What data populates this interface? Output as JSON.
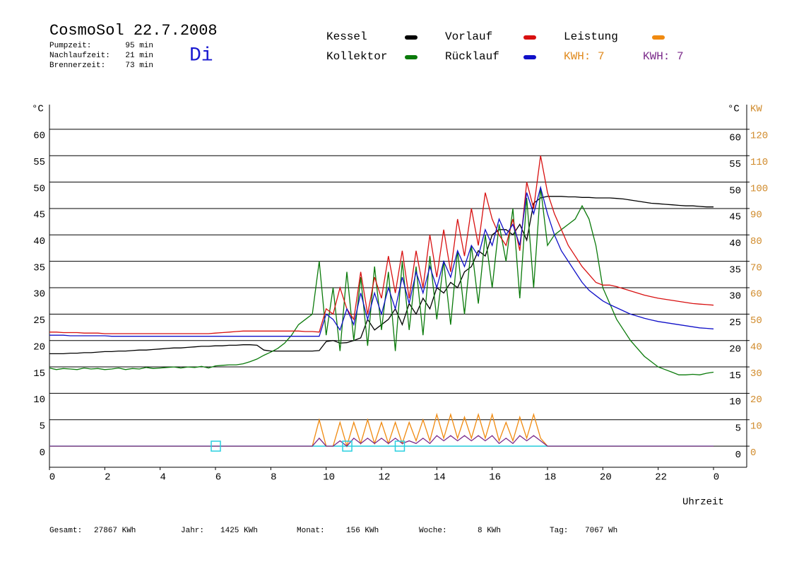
{
  "chart_data": {
    "type": "line",
    "title": "CosmoSol 22.7.2008",
    "day": "Di",
    "stats": [
      [
        "Pumpzeit:",
        "95 min"
      ],
      [
        "Nachlaufzeit:",
        "21 min"
      ],
      [
        "Brennerzeit:",
        "73 min"
      ]
    ],
    "kwh_labels": [
      {
        "text": "KWH: 7",
        "color": "#e08a1e"
      },
      {
        "text": "KWH: 7",
        "color": "#7a2a8a"
      }
    ],
    "footer": [
      [
        "Gesamt:",
        "27867 KWh"
      ],
      [
        "Jahr:",
        "1425 KWh"
      ],
      [
        "Monat:",
        "156 KWh"
      ],
      [
        "Woche:",
        "8 KWh"
      ],
      [
        "Tag:",
        "7067 Wh"
      ]
    ],
    "y_unit": "°C",
    "y2_unit": "KW",
    "xlabel": "Uhrzeit",
    "xlim": [
      0,
      25.2
    ],
    "xticks": [
      0,
      2,
      4,
      6,
      8,
      10,
      12,
      14,
      16,
      18,
      20,
      22,
      {
        "value": 24,
        "label": "0"
      }
    ],
    "ylim": [
      -4,
      64
    ],
    "yticks": [
      0,
      5,
      10,
      15,
      20,
      25,
      30,
      35,
      40,
      45,
      50,
      55,
      60
    ],
    "y2lim": [
      -8,
      128
    ],
    "y2ticks": [
      0,
      10,
      20,
      30,
      40,
      50,
      60,
      70,
      80,
      90,
      100,
      110,
      120
    ],
    "grid": true,
    "events_x": [
      6,
      10.75,
      12.65
    ],
    "x": [
      0,
      0.25,
      0.5,
      0.75,
      1,
      1.25,
      1.5,
      1.75,
      2,
      2.25,
      2.5,
      2.75,
      3,
      3.25,
      3.5,
      3.75,
      4,
      4.25,
      4.5,
      4.75,
      5,
      5.25,
      5.5,
      5.75,
      6,
      6.25,
      6.5,
      6.75,
      7,
      7.25,
      7.5,
      7.75,
      8,
      8.25,
      8.5,
      8.75,
      9,
      9.25,
      9.5,
      9.75,
      10,
      10.25,
      10.5,
      10.75,
      11,
      11.25,
      11.5,
      11.75,
      12,
      12.25,
      12.5,
      12.75,
      13,
      13.25,
      13.5,
      13.75,
      14,
      14.25,
      14.5,
      14.75,
      15,
      15.25,
      15.5,
      15.75,
      16,
      16.25,
      16.5,
      16.75,
      17,
      17.25,
      17.5,
      17.75,
      18,
      18.25,
      18.5,
      18.75,
      19,
      19.25,
      19.5,
      19.75,
      20,
      20.25,
      20.5,
      20.75,
      21,
      21.25,
      21.5,
      21.75,
      22,
      22.25,
      22.5,
      22.75,
      23,
      23.25,
      23.5,
      23.75,
      24
    ],
    "series": [
      {
        "name": "Kessel",
        "color": "#000000",
        "values": [
          17.5,
          17.5,
          17.5,
          17.6,
          17.6,
          17.7,
          17.7,
          17.8,
          17.9,
          17.9,
          18,
          18,
          18.1,
          18.2,
          18.2,
          18.3,
          18.4,
          18.5,
          18.6,
          18.6,
          18.7,
          18.8,
          18.9,
          18.9,
          19,
          19,
          19.1,
          19.1,
          19.2,
          19.2,
          19.1,
          18.2,
          18,
          18,
          18,
          18,
          18,
          18,
          18,
          18.1,
          19.8,
          20,
          19.5,
          19.6,
          20,
          20.5,
          24,
          22,
          23,
          24,
          26,
          23,
          27,
          25,
          28,
          26,
          30,
          29,
          31,
          30,
          33,
          34,
          37,
          36,
          40,
          41,
          41,
          40,
          42,
          39,
          46,
          47,
          47.3,
          47.3,
          47.3,
          47.2,
          47.2,
          47.1,
          47.1,
          47,
          47,
          47,
          46.9,
          46.8,
          46.6,
          46.4,
          46.2,
          46,
          45.9,
          45.8,
          45.7,
          45.6,
          45.5,
          45.5,
          45.4,
          45.3,
          45.3
        ]
      },
      {
        "name": "Kollektor",
        "color": "#0a7a0a",
        "values": [
          14.8,
          14.5,
          14.7,
          14.6,
          14.5,
          14.8,
          14.6,
          14.7,
          14.5,
          14.6,
          14.8,
          14.5,
          14.7,
          14.6,
          14.9,
          14.7,
          14.8,
          14.9,
          15,
          14.8,
          15,
          14.9,
          15.1,
          14.8,
          15.2,
          15.3,
          15.4,
          15.4,
          15.6,
          16,
          16.5,
          17.2,
          17.8,
          18.5,
          19.5,
          21,
          23,
          24,
          25,
          35,
          21,
          30,
          18,
          33,
          20,
          32,
          19,
          34,
          22,
          33,
          18,
          35,
          22,
          34,
          21,
          36,
          24,
          35,
          23,
          37,
          25,
          38,
          27,
          40,
          30,
          42,
          35,
          45,
          28,
          47,
          30,
          49,
          38,
          40,
          41,
          42,
          43,
          45.5,
          43,
          38,
          30,
          27,
          24,
          22,
          20,
          18.5,
          17,
          16,
          15,
          14.5,
          14,
          13.5,
          13.5,
          13.6,
          13.5,
          13.8,
          14
        ]
      },
      {
        "name": "Vorlauf",
        "color": "#d81010",
        "values": [
          21.6,
          21.6,
          21.5,
          21.5,
          21.5,
          21.4,
          21.4,
          21.4,
          21.3,
          21.3,
          21.3,
          21.3,
          21.3,
          21.3,
          21.3,
          21.3,
          21.3,
          21.3,
          21.3,
          21.3,
          21.3,
          21.3,
          21.3,
          21.3,
          21.4,
          21.5,
          21.6,
          21.7,
          21.8,
          21.8,
          21.8,
          21.8,
          21.8,
          21.8,
          21.8,
          21.8,
          21.8,
          21.7,
          21.7,
          21.6,
          26,
          25,
          30,
          26,
          24,
          33,
          25,
          32,
          28,
          36,
          29,
          37,
          28,
          37,
          30,
          40,
          32,
          41,
          33,
          43,
          36,
          45,
          38,
          48,
          43,
          40,
          38,
          43,
          37,
          50,
          45,
          55,
          48,
          44,
          41,
          38,
          36,
          34,
          32.5,
          31,
          30.5,
          30.5,
          30.2,
          29.8,
          29.4,
          29,
          28.6,
          28.3,
          28,
          27.8,
          27.6,
          27.4,
          27.2,
          27,
          26.9,
          26.8,
          26.7
        ]
      },
      {
        "name": "Rücklauf",
        "color": "#1010c8",
        "values": [
          21,
          21,
          21,
          20.9,
          20.9,
          20.9,
          20.9,
          20.9,
          20.9,
          20.8,
          20.8,
          20.8,
          20.8,
          20.8,
          20.8,
          20.8,
          20.8,
          20.8,
          20.8,
          20.8,
          20.8,
          20.8,
          20.8,
          20.8,
          20.8,
          20.8,
          20.8,
          20.8,
          20.8,
          20.8,
          20.8,
          20.8,
          20.8,
          20.8,
          20.8,
          20.8,
          20.8,
          20.8,
          20.8,
          20.8,
          25,
          24,
          22,
          26,
          23,
          29,
          24,
          29,
          25,
          30,
          26,
          32,
          27,
          33,
          29,
          34,
          30,
          35,
          32,
          37,
          34,
          38,
          36,
          41,
          38,
          43,
          40,
          42,
          38,
          48,
          44,
          49,
          44,
          40,
          37,
          35,
          33,
          31,
          29.5,
          28.5,
          27.5,
          26.8,
          26.2,
          25.6,
          25,
          24.6,
          24.2,
          23.9,
          23.6,
          23.4,
          23.2,
          23,
          22.8,
          22.6,
          22.4,
          22.3,
          22.2
        ]
      },
      {
        "name": "Leistung",
        "color": "#f08a10",
        "axis": "y2",
        "values": [
          0,
          0,
          0,
          0,
          0,
          0,
          0,
          0,
          0,
          0,
          0,
          0,
          0,
          0,
          0,
          0,
          0,
          0,
          0,
          0,
          0,
          0,
          0,
          0,
          0,
          0,
          0,
          0,
          0,
          0,
          0,
          0,
          0,
          0,
          0,
          0,
          0,
          0,
          0,
          10,
          0,
          0,
          9,
          0,
          9,
          1,
          10,
          1,
          9,
          1,
          9,
          1,
          9,
          2,
          10,
          2,
          12,
          3,
          12,
          3,
          11,
          3,
          12,
          3,
          12,
          2,
          9,
          2,
          11,
          3,
          12,
          3,
          0,
          0,
          0,
          0,
          0,
          0,
          0,
          0,
          0,
          0,
          0,
          0,
          0,
          0,
          0,
          0,
          0,
          0,
          0,
          0,
          0,
          0,
          0,
          0,
          0
        ]
      },
      {
        "color": "#7a2a8a",
        "axis": "y2",
        "values": [
          0,
          0,
          0,
          0,
          0,
          0,
          0,
          0,
          0,
          0,
          0,
          0,
          0,
          0,
          0,
          0,
          0,
          0,
          0,
          0,
          0,
          0,
          0,
          0,
          0,
          0,
          0,
          0,
          0,
          0,
          0,
          0,
          0,
          0,
          0,
          0,
          0,
          0,
          0,
          3,
          0,
          0,
          2,
          0,
          3,
          1,
          3,
          1,
          3,
          1,
          3,
          1,
          2,
          1,
          3,
          1,
          4,
          2,
          4,
          2,
          4,
          2,
          4,
          2,
          4,
          1,
          3,
          1,
          4,
          2,
          4,
          2,
          0,
          0,
          0,
          0,
          0,
          0,
          0,
          0,
          0,
          0,
          0,
          0,
          0,
          0,
          0,
          0,
          0,
          0,
          0,
          0,
          0,
          0,
          0,
          0,
          0
        ]
      }
    ]
  }
}
